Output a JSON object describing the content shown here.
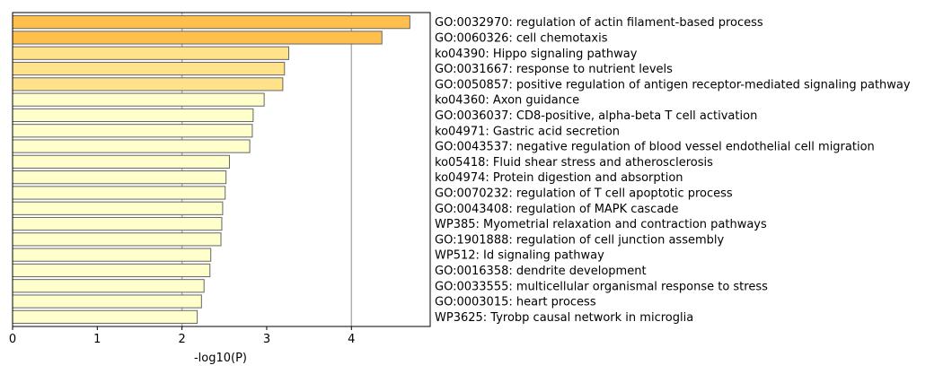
{
  "chart_data": {
    "type": "bar",
    "orientation": "horizontal",
    "xlabel": "-log10(P)",
    "xlim": [
      0,
      4.93
    ],
    "xticks": [
      0,
      1,
      2,
      3,
      4
    ],
    "grid_lines_at": [
      2,
      4
    ],
    "categories": [
      "GO:0032970: regulation of actin filament-based process",
      "GO:0060326: cell chemotaxis",
      "ko04390: Hippo signaling pathway",
      "GO:0031667: response to nutrient levels",
      "GO:0050857: positive regulation of antigen receptor-mediated signaling pathway",
      "ko04360: Axon guidance",
      "GO:0036037: CD8-positive, alpha-beta T cell activation",
      "ko04971: Gastric acid secretion",
      "GO:0043537: negative regulation of blood vessel endothelial cell migration",
      "ko05418: Fluid shear stress and atherosclerosis",
      "ko04974: Protein digestion and absorption",
      "GO:0070232: regulation of T cell apoptotic process",
      "GO:0043408: regulation of MAPK cascade",
      "WP385: Myometrial relaxation and contraction pathways",
      "GO:1901888: regulation of cell junction assembly",
      "WP512: Id signaling pathway",
      "GO:0016358: dendrite development",
      "GO:0033555: multicellular organismal response to stress",
      "GO:0003015: heart process",
      "WP3625: Tyrobp causal network in microglia"
    ],
    "values": [
      4.69,
      4.36,
      3.26,
      3.21,
      3.19,
      2.97,
      2.84,
      2.83,
      2.8,
      2.56,
      2.52,
      2.51,
      2.48,
      2.47,
      2.46,
      2.34,
      2.33,
      2.26,
      2.23,
      2.18
    ],
    "bar_colors": [
      "#ffbf4d",
      "#ffbf4d",
      "#ffe28a",
      "#ffe28a",
      "#ffe28a",
      "#ffffcc",
      "#ffffcc",
      "#ffffcc",
      "#ffffcc",
      "#ffffcc",
      "#ffffcc",
      "#ffffcc",
      "#ffffcc",
      "#ffffcc",
      "#ffffcc",
      "#ffffcc",
      "#ffffcc",
      "#ffffcc",
      "#ffffcc",
      "#ffffcc"
    ],
    "bar_edge_color": "#666666",
    "grid_color": "#b0b0b0"
  }
}
